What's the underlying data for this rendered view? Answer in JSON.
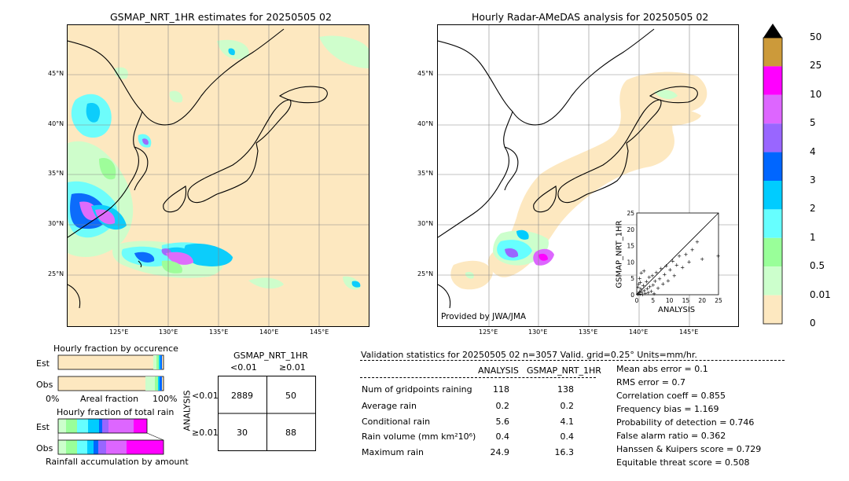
{
  "left_map": {
    "title": "GSMAP_NRT_1HR estimates for 20250505 02",
    "lat_labels": [
      "45°N",
      "40°N",
      "35°N",
      "30°N",
      "25°N"
    ],
    "lon_labels": [
      "125°E",
      "130°E",
      "135°E",
      "140°E",
      "145°E"
    ]
  },
  "right_map": {
    "title": "Hourly Radar-AMeDAS analysis for 20250505 02",
    "lat_labels": [
      "45°N",
      "40°N",
      "35°N",
      "30°N",
      "25°N"
    ],
    "lon_labels": [
      "125°E",
      "130°E",
      "135°E",
      "140°E",
      "145°E"
    ],
    "credit": "Provided by JWA/JMA"
  },
  "colorbar": {
    "labels": [
      "50",
      "25",
      "10",
      "5",
      "4",
      "3",
      "2",
      "1",
      "0.5",
      "0.01",
      "0"
    ],
    "colors": [
      "#cc9a3a",
      "#ff00ff",
      "#dd66ff",
      "#9966ff",
      "#0066ff",
      "#00ccff",
      "#66ffff",
      "#99ff99",
      "#ccffcc",
      "#fde8c0"
    ]
  },
  "chart_data": [
    {
      "type": "scatter",
      "xlabel": "ANALYSIS",
      "ylabel": "GSMAP_NRT_1HR",
      "xlim": [
        0,
        25
      ],
      "ylim": [
        0,
        25
      ],
      "ticks": [
        "0",
        "5",
        "10",
        "15",
        "20",
        "25"
      ],
      "points": [
        [
          0.3,
          0.2
        ],
        [
          0.5,
          0.6
        ],
        [
          0.8,
          1.1
        ],
        [
          1.0,
          0.4
        ],
        [
          1.2,
          2.1
        ],
        [
          1.5,
          1.0
        ],
        [
          1.8,
          0.3
        ],
        [
          2.0,
          3.0
        ],
        [
          2.3,
          1.5
        ],
        [
          2.6,
          0.6
        ],
        [
          3.0,
          4.2
        ],
        [
          3.2,
          2.0
        ],
        [
          3.5,
          0.9
        ],
        [
          3.8,
          5.5
        ],
        [
          4.0,
          2.6
        ],
        [
          4.4,
          1.2
        ],
        [
          4.8,
          6.0
        ],
        [
          5.0,
          3.1
        ],
        [
          5.3,
          0.5
        ],
        [
          5.6,
          4.3
        ],
        [
          6.0,
          7.0
        ],
        [
          6.5,
          2.2
        ],
        [
          7.0,
          5.0
        ],
        [
          7.4,
          8.2
        ],
        [
          8.0,
          3.5
        ],
        [
          8.5,
          6.4
        ],
        [
          9.0,
          9.0
        ],
        [
          9.6,
          4.5
        ],
        [
          10.2,
          7.8
        ],
        [
          11.0,
          10.5
        ],
        [
          11.5,
          6.0
        ],
        [
          12.2,
          9.2
        ],
        [
          13.0,
          12.0
        ],
        [
          14.0,
          8.5
        ],
        [
          15.0,
          12.5
        ],
        [
          16.0,
          10.2
        ],
        [
          17.0,
          14.0
        ],
        [
          18.5,
          16.3
        ],
        [
          20.0,
          11.0
        ],
        [
          24.9,
          12.0
        ],
        [
          0.6,
          3.5
        ],
        [
          0.9,
          5.2
        ],
        [
          1.4,
          6.8
        ],
        [
          2.2,
          7.5
        ],
        [
          0.4,
          2.5
        ],
        [
          1.1,
          4.0
        ]
      ]
    },
    {
      "type": "bar",
      "title": "Hourly fraction by occurence",
      "categories": [
        "Est",
        "Obs"
      ],
      "xlabels": [
        "0%",
        "Areal fraction",
        "100%"
      ]
    },
    {
      "type": "bar",
      "title": "Hourly fraction of total rain",
      "categories": [
        "Est",
        "Obs"
      ],
      "xlabel": "Rainfall accumulation by amount"
    },
    {
      "type": "table",
      "title": "GSMAP_NRT_1HR",
      "col_labels": [
        "<0.01",
        "≥0.01"
      ],
      "row_labels": [
        "<0.01",
        "≥0.01"
      ],
      "row_axis": "ANALYSIS",
      "cells": [
        [
          "2889",
          "50"
        ],
        [
          "30",
          "88"
        ]
      ]
    }
  ],
  "stats": {
    "header": "Validation statistics for 20250505 02  n=3057 Valid. grid=0.25° Units=mm/hr.",
    "col1": "ANALYSIS",
    "col2": "GSMAP_NRT_1HR",
    "rows": [
      {
        "label": "Num of gridpoints raining",
        "a": "118",
        "g": "138"
      },
      {
        "label": "Average rain",
        "a": "0.2",
        "g": "0.2"
      },
      {
        "label": "Conditional rain",
        "a": "5.6",
        "g": "4.1"
      },
      {
        "label": "Rain volume (mm km²10⁶)",
        "a": "0.4",
        "g": "0.4"
      },
      {
        "label": "Maximum rain",
        "a": "24.9",
        "g": "16.3"
      }
    ],
    "scores": [
      "Mean abs error =    0.1",
      "RMS error =    0.7",
      "Correlation coeff =  0.855",
      "Frequency bias =  1.169",
      "Probability of detection =  0.746",
      "False alarm ratio =  0.362",
      "Hanssen & Kuipers score =  0.729",
      "Equitable threat score =  0.508"
    ]
  }
}
